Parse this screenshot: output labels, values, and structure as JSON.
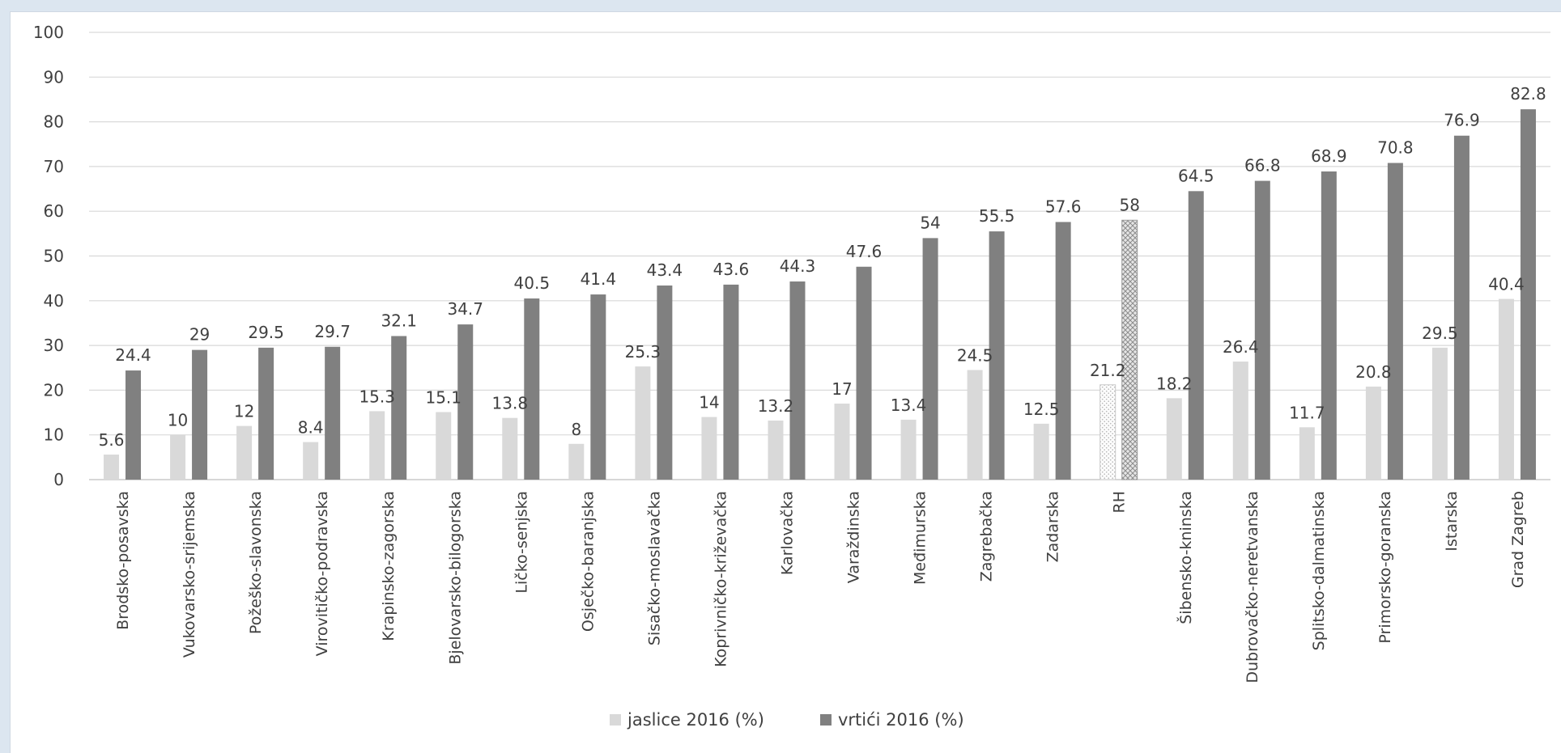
{
  "chart_data": {
    "type": "bar",
    "categories": [
      "Brodsko-posavska",
      "Vukovarsko-srijemska",
      "Požeško-slavonska",
      "Virovitičko-podravska",
      "Krapinsko-zagorska",
      "Bjelovarsko-bilogorska",
      "Ličko-senjska",
      "Osječko-baranjska",
      "Sisačko-moslavačka",
      "Koprivničko-križevačka",
      "Karlovačka",
      "Varaždinska",
      "Međimurska",
      "Zagrebačka",
      "Zadarska",
      "RH",
      "Šibensko-kninska",
      "Dubrovačko-neretvanska",
      "Splitsko-dalmatinska",
      "Primorsko-goranska",
      "Istarska",
      "Grad Zagreb"
    ],
    "series": [
      {
        "name": "jaslice 2016 (%)",
        "color": "#d9d9d9",
        "values": [
          5.6,
          10,
          12,
          8.4,
          15.3,
          15.1,
          13.8,
          8,
          25.3,
          14,
          13.2,
          17,
          13.4,
          24.5,
          12.5,
          21.2,
          18.2,
          26.4,
          11.7,
          20.8,
          29.5,
          40.4
        ]
      },
      {
        "name": "vrtići 2016 (%)",
        "color": "#808080",
        "values": [
          24.4,
          29,
          29.5,
          29.7,
          32.1,
          34.7,
          40.5,
          41.4,
          43.4,
          43.6,
          44.3,
          47.6,
          54,
          55.5,
          57.6,
          58,
          64.5,
          66.8,
          68.9,
          70.8,
          76.9,
          82.8
        ]
      }
    ],
    "highlight_category": "RH",
    "ylim": [
      0,
      100
    ],
    "yticks": [
      0,
      10,
      20,
      30,
      40,
      50,
      60,
      70,
      80,
      90,
      100
    ],
    "grid": true,
    "legend_position": "bottom",
    "title": "",
    "xlabel": "",
    "ylabel": ""
  }
}
